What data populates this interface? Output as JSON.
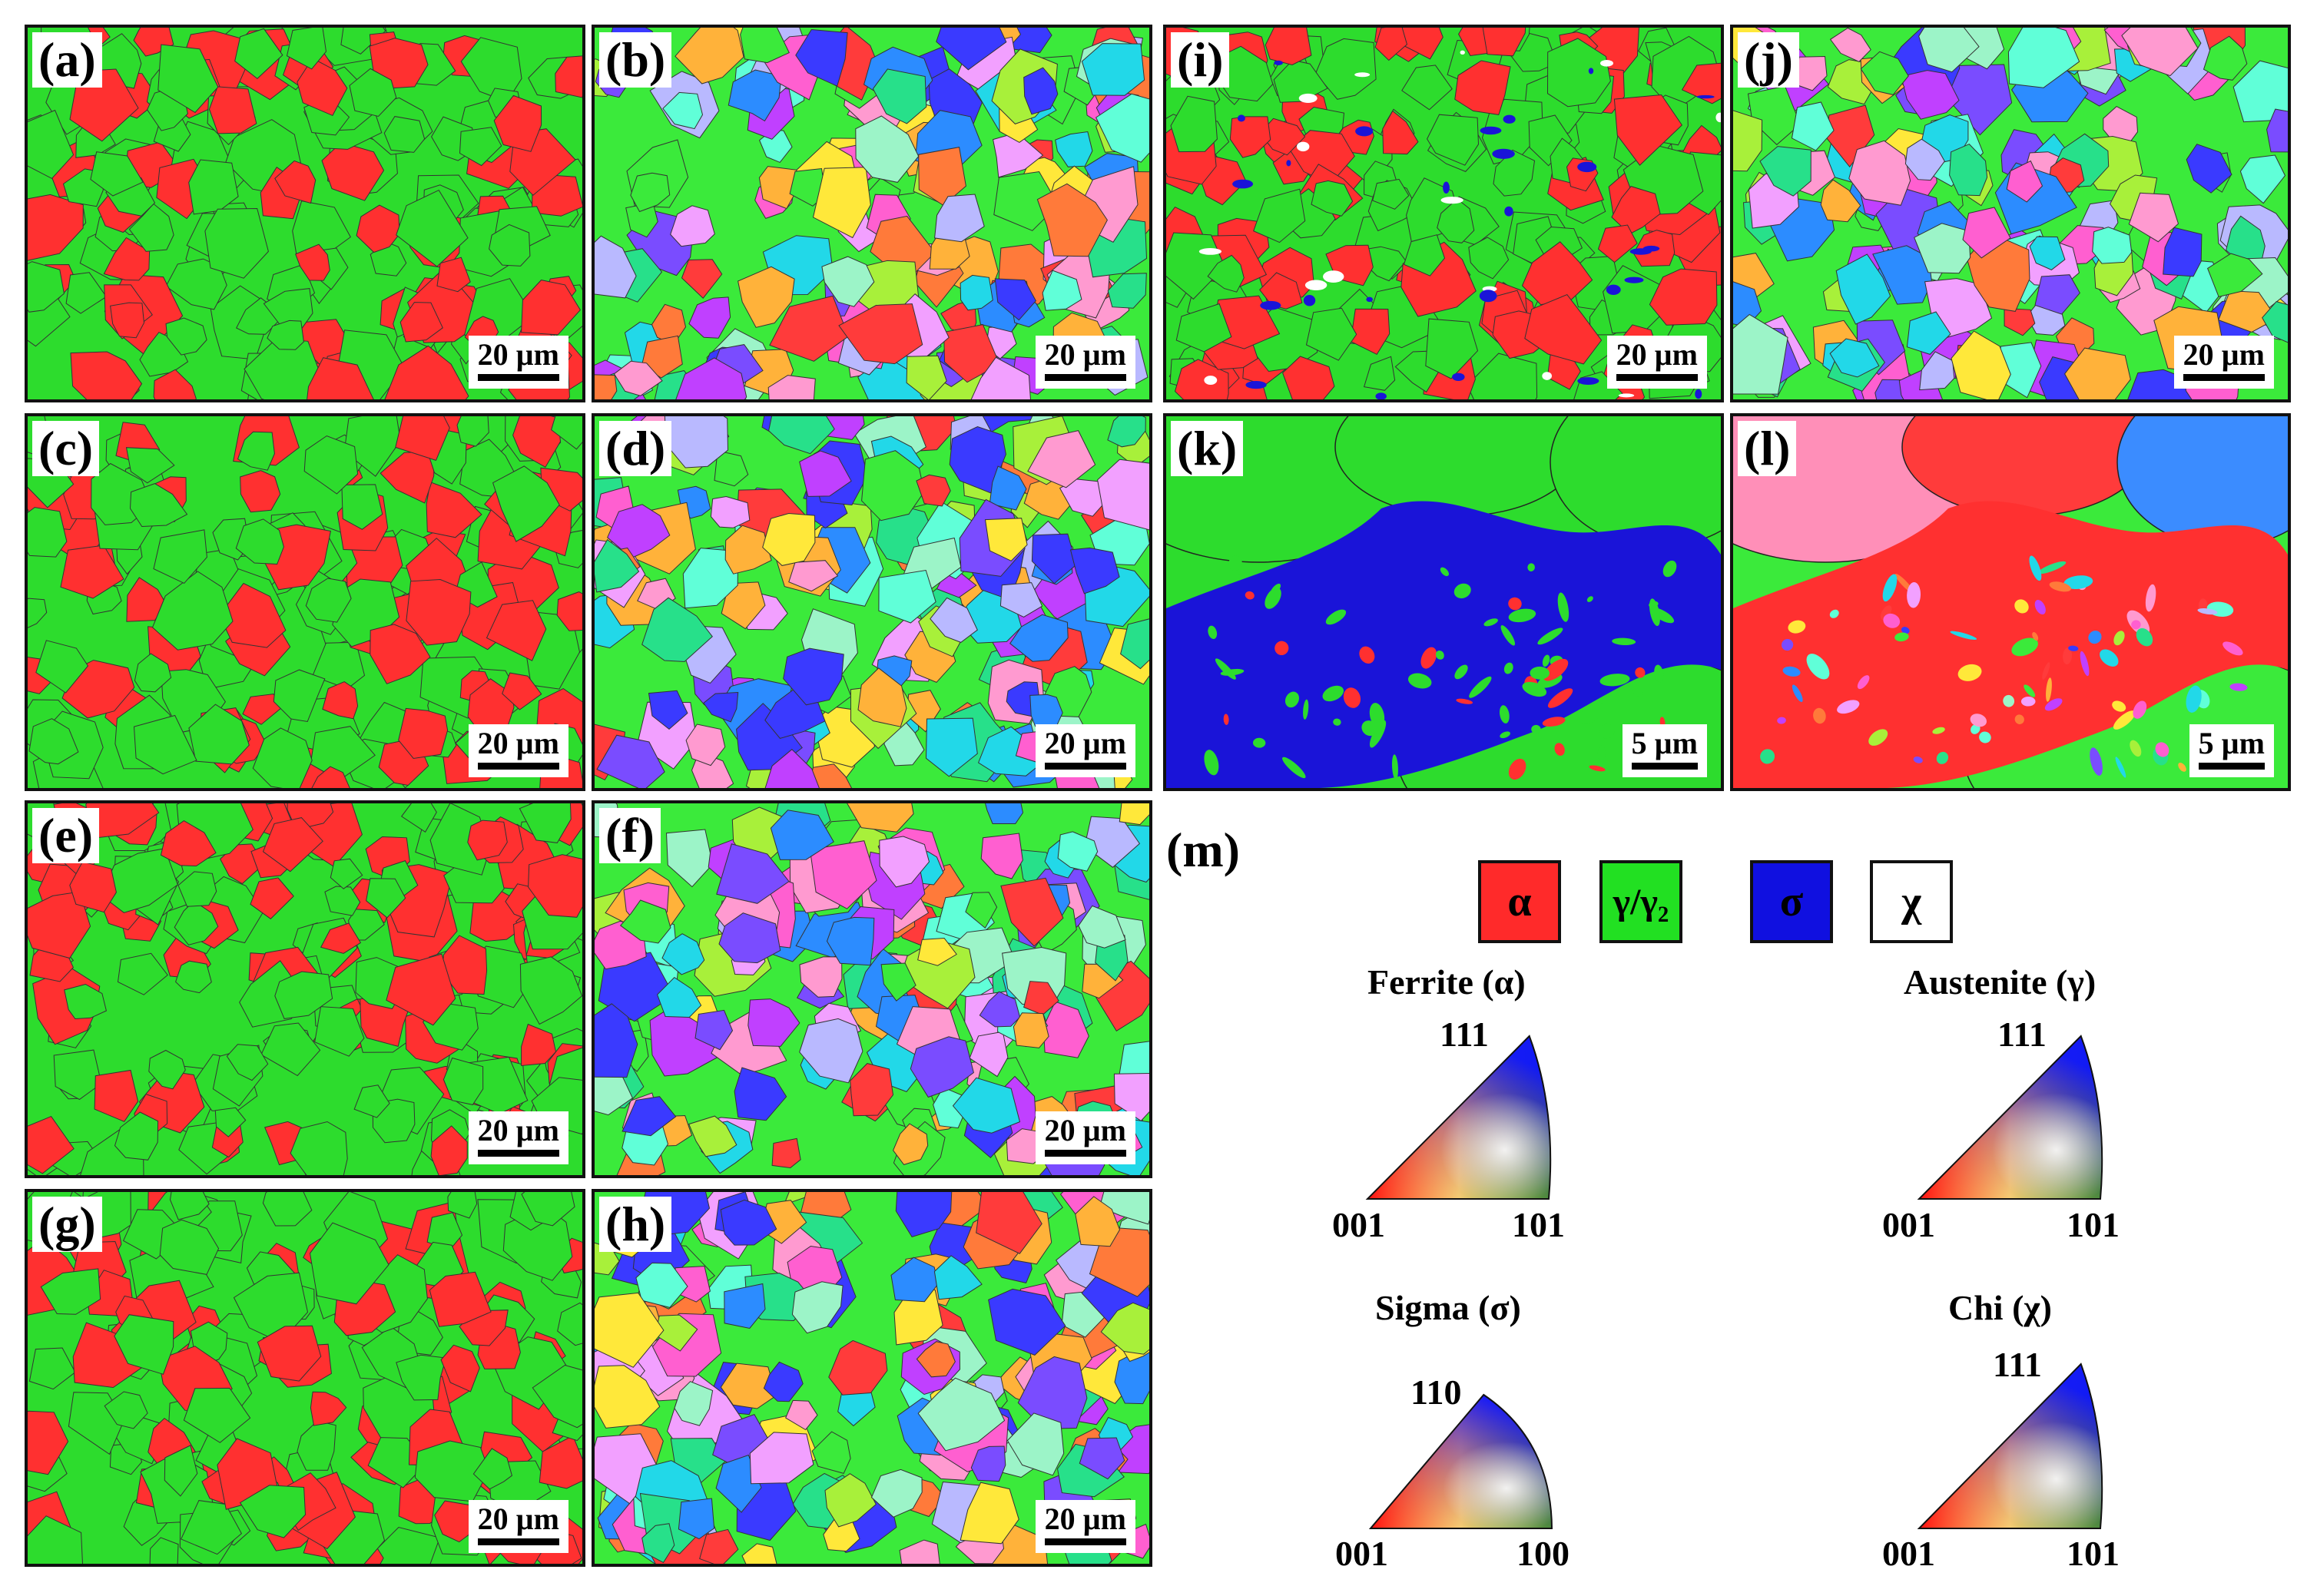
{
  "panels": [
    {
      "id": "a",
      "label": "(a)",
      "scale": "20 µm",
      "style": "phase"
    },
    {
      "id": "b",
      "label": "(b)",
      "scale": "20 µm",
      "style": "ipf"
    },
    {
      "id": "c",
      "label": "(c)",
      "scale": "20 µm",
      "style": "phase"
    },
    {
      "id": "d",
      "label": "(d)",
      "scale": "20 µm",
      "style": "ipf"
    },
    {
      "id": "e",
      "label": "(e)",
      "scale": "20 µm",
      "style": "phase"
    },
    {
      "id": "f",
      "label": "(f)",
      "scale": "20 µm",
      "style": "ipf"
    },
    {
      "id": "g",
      "label": "(g)",
      "scale": "20 µm",
      "style": "phase"
    },
    {
      "id": "h",
      "label": "(h)",
      "scale": "20 µm",
      "style": "ipf"
    },
    {
      "id": "i",
      "label": "(i)",
      "scale": "20 µm",
      "style": "phase-sigma"
    },
    {
      "id": "j",
      "label": "(j)",
      "scale": "20 µm",
      "style": "ipf"
    },
    {
      "id": "k",
      "label": "(k)",
      "scale": "5 µm",
      "style": "phase-zoom"
    },
    {
      "id": "l",
      "label": "(l)",
      "scale": "5 µm",
      "style": "ipf-zoom"
    }
  ],
  "legend": {
    "label": "(m)",
    "phases": [
      {
        "symbol": "α",
        "color": "#ff2a2a"
      },
      {
        "symbol": "γ/γ₂",
        "color": "#22e022"
      },
      {
        "symbol": "σ",
        "color": "#1010e0"
      },
      {
        "symbol": "χ",
        "color": "#ffffff"
      }
    ]
  },
  "ipf_keys": [
    {
      "title": "Ferrite (α)",
      "top": "111",
      "left": "001",
      "right": "101"
    },
    {
      "title": "Austenite (γ)",
      "top": "111",
      "left": "001",
      "right": "101"
    },
    {
      "title": "Sigma (σ)",
      "top": "110",
      "left": "001",
      "right": "100"
    },
    {
      "title": "Chi (χ)",
      "top": "111",
      "left": "001",
      "right": "101"
    }
  ],
  "colors": {
    "ferrite": "#ff3030",
    "austenite": "#2ddc2d",
    "sigma": "#1a14d8",
    "chi": "#ffffff"
  }
}
